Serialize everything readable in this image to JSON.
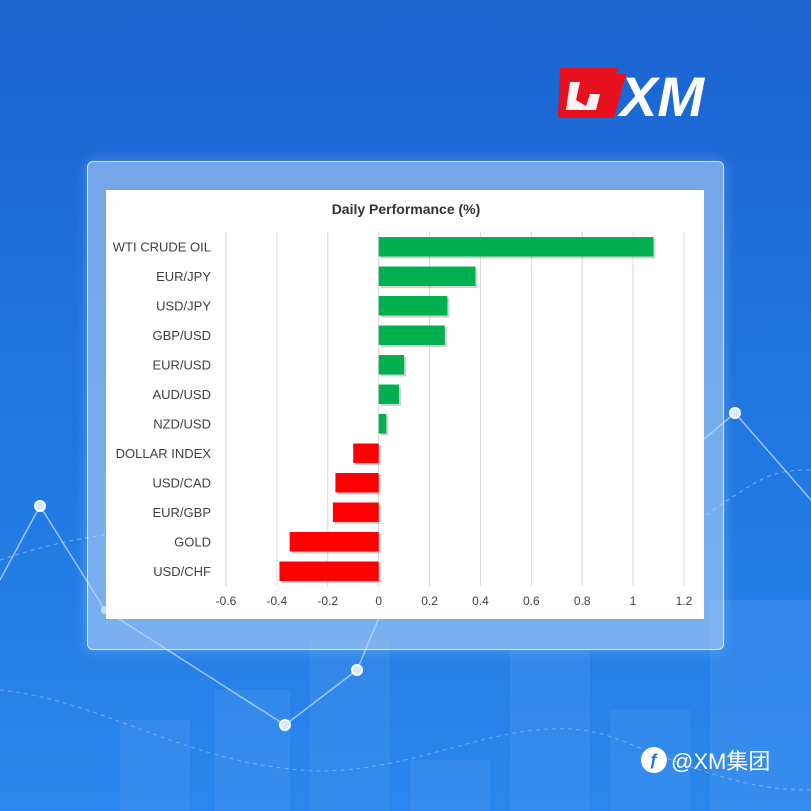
{
  "brand": {
    "logo_text": "XM",
    "social_handle": "@XM集团",
    "social_icon": "weibo-icon",
    "accent_red": "#e8101c",
    "background_blue": "#1f74e0"
  },
  "chart_data": {
    "type": "bar",
    "orientation": "horizontal",
    "title": "Daily Performance  (%)",
    "categories": [
      "WTI CRUDE OIL",
      "EUR/JPY",
      "USD/JPY",
      "GBP/USD",
      "EUR/USD",
      "AUD/USD",
      "NZD/USD",
      "DOLLAR INDEX",
      "USD/CAD",
      "EUR/GBP",
      "GOLD",
      "USD/CHF"
    ],
    "values": [
      1.08,
      0.38,
      0.27,
      0.26,
      0.1,
      0.08,
      0.03,
      -0.1,
      -0.17,
      -0.18,
      -0.35,
      -0.39
    ],
    "xlim": [
      -0.6,
      1.2
    ],
    "xticks": [
      "-0.6",
      "-0.4",
      "-0.2",
      "0",
      "0.2",
      "0.4",
      "0.6",
      "0.8",
      "1",
      "1.2"
    ],
    "grid": true,
    "positive_color": "#00b050",
    "negative_color": "#ff0000"
  }
}
